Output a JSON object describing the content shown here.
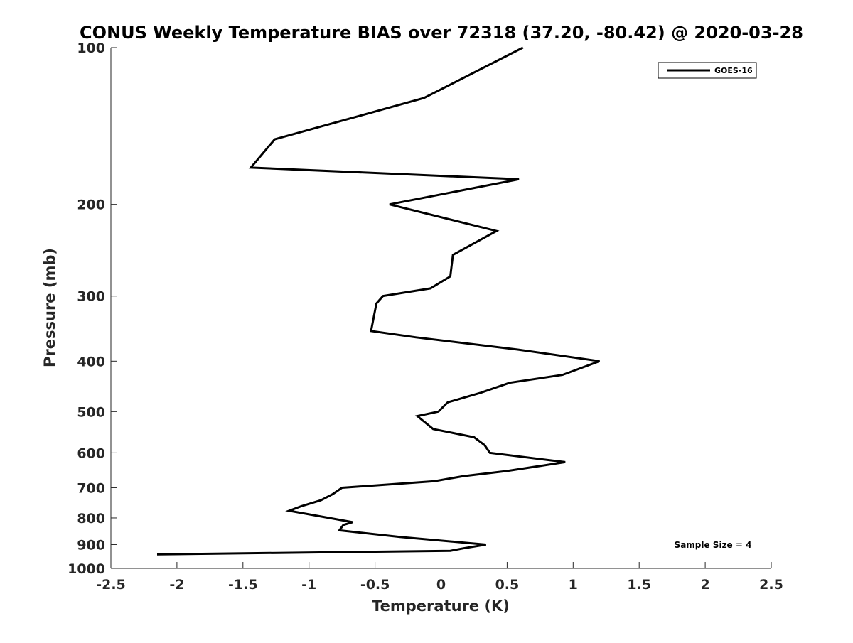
{
  "chart_data": {
    "type": "line",
    "title": "CONUS Weekly Temperature BIAS over 72318 (37.20, -80.42) @ 2020-03-28",
    "xlabel": "Temperature (K)",
    "ylabel": "Pressure (mb)",
    "xlim": [
      -2.5,
      2.5
    ],
    "ylim": [
      100,
      1000
    ],
    "y_scale": "log",
    "y_direction": "reversed",
    "grid": false,
    "xticks": [
      -2.5,
      -2,
      -1.5,
      -1,
      -0.5,
      0,
      0.5,
      1,
      1.5,
      2,
      2.5
    ],
    "xtick_labels": [
      "-2.5",
      "-2",
      "-1.5",
      "-1",
      "-0.5",
      "0",
      "0.5",
      "1",
      "1.5",
      "2",
      "2.5"
    ],
    "yticks": [
      100,
      200,
      300,
      400,
      500,
      600,
      700,
      800,
      900,
      1000
    ],
    "ytick_labels": [
      "100",
      "200",
      "300",
      "400",
      "500",
      "600",
      "700",
      "800",
      "900",
      "1000"
    ],
    "legend_position": "top-right",
    "annotation": "Sample Size = 4",
    "series": [
      {
        "name": "GOES-16",
        "color": "#000000",
        "points": [
          [
            0.62,
            100
          ],
          [
            -0.13,
            125
          ],
          [
            -1.26,
            150
          ],
          [
            -1.44,
            170
          ],
          [
            0.59,
            179
          ],
          [
            -0.39,
            200
          ],
          [
            0.42,
            225
          ],
          [
            0.09,
            250
          ],
          [
            0.07,
            275
          ],
          [
            -0.08,
            290
          ],
          [
            -0.44,
            300
          ],
          [
            -0.49,
            310
          ],
          [
            -0.53,
            350
          ],
          [
            -0.19,
            360
          ],
          [
            0.58,
            380
          ],
          [
            1.2,
            400
          ],
          [
            0.92,
            425
          ],
          [
            0.52,
            440
          ],
          [
            0.3,
            460
          ],
          [
            0.05,
            480
          ],
          [
            -0.02,
            500
          ],
          [
            -0.18,
            510
          ],
          [
            -0.06,
            540
          ],
          [
            0.25,
            560
          ],
          [
            0.33,
            580
          ],
          [
            0.37,
            600
          ],
          [
            0.94,
            625
          ],
          [
            0.5,
            650
          ],
          [
            0.17,
            665
          ],
          [
            -0.05,
            680
          ],
          [
            -0.75,
            700
          ],
          [
            -0.82,
            720
          ],
          [
            -0.91,
            740
          ],
          [
            -1.06,
            760
          ],
          [
            -1.15,
            775
          ],
          [
            -0.67,
            815
          ],
          [
            -0.74,
            825
          ],
          [
            -0.77,
            845
          ],
          [
            -0.31,
            870
          ],
          [
            0.34,
            900
          ],
          [
            0.17,
            915
          ],
          [
            0.07,
            925
          ],
          [
            -2.15,
            940
          ]
        ]
      }
    ]
  }
}
